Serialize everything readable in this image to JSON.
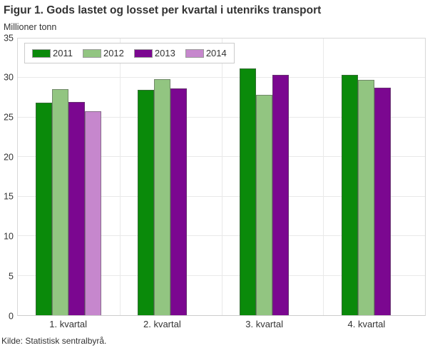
{
  "page": {
    "title": "Figur 1. Gods lastet og losset per kvartal i utenriks transport",
    "unit_label": "Millioner tonn",
    "source": "Kilde: Statistisk sentralbyrå."
  },
  "chart_data": {
    "type": "bar",
    "title": "Figur 1. Gods lastet og losset per kvartal i utenriks transport",
    "ylabel": "Millioner tonn",
    "xlabel": "",
    "categories": [
      "1. kvartal",
      "2. kvartal",
      "3. kvartal",
      "4. kvartal"
    ],
    "series": [
      {
        "name": "2011",
        "color": "#0a8a0a",
        "values": [
          26.9,
          28.5,
          31.2,
          30.4
        ]
      },
      {
        "name": "2012",
        "color": "#92c581",
        "values": [
          28.6,
          29.9,
          27.9,
          29.8
        ]
      },
      {
        "name": "2013",
        "color": "#7b0790",
        "values": [
          27.0,
          28.7,
          30.4,
          28.8
        ]
      },
      {
        "name": "2014",
        "color": "#c687cd",
        "values": [
          25.8,
          null,
          null,
          null
        ]
      }
    ],
    "ylim": [
      0,
      35
    ],
    "ytick_step": 5,
    "yticks": [
      0,
      5,
      10,
      15,
      20,
      25,
      30,
      35
    ],
    "grid": true,
    "legend_position": "top-left-inside",
    "source": "Kilde: Statistisk sentralbyrå."
  },
  "colors": {
    "grid": "#e9e9e9",
    "plot_border": "#d8d8d8",
    "axis_line": "#cccccc",
    "text": "#333333",
    "legend_border": "#cccccc",
    "bar_border": "rgba(85,85,85,0.55)"
  }
}
